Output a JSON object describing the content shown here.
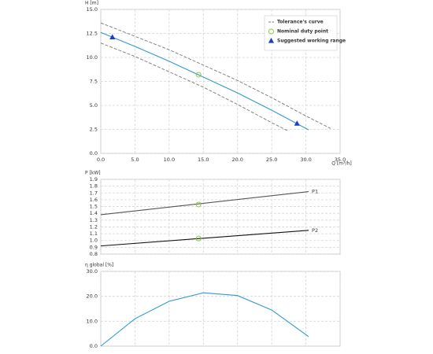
{
  "chart_data": [
    {
      "type": "line",
      "ylabel": "H [m]",
      "xlabel": "Q [m³/h]",
      "xlim": [
        0,
        35
      ],
      "ylim": [
        0,
        15
      ],
      "xticks": [
        {
          "value": 0,
          "label": "0.0"
        },
        {
          "value": 5,
          "label": "5.0"
        },
        {
          "value": 10,
          "label": "10.0"
        },
        {
          "value": 15,
          "label": "15.0"
        },
        {
          "value": 20,
          "label": "20.0"
        },
        {
          "value": 25,
          "label": "25.0"
        },
        {
          "value": 30,
          "label": "30.0"
        },
        {
          "value": 35,
          "label": "35.0"
        }
      ],
      "yticks": [
        {
          "value": 0,
          "label": "0.0"
        },
        2.5,
        {
          "value": 5,
          "label": "5.0"
        },
        7.5,
        {
          "value": 10,
          "label": "10.0"
        },
        12.5,
        {
          "value": 15,
          "label": "15.0"
        }
      ],
      "grid": true,
      "legend": "upper right",
      "series": [
        {
          "name": "Tolerance's curve",
          "color": "#777777",
          "dashed": true,
          "x": [
            0,
            5,
            10,
            15,
            20,
            25,
            30,
            33.6
          ],
          "values": [
            13.6,
            12.2,
            10.8,
            9.2,
            7.6,
            5.8,
            3.9,
            2.6
          ]
        },
        {
          "color": "#777777",
          "dashed": true,
          "x": [
            0,
            5,
            10,
            15,
            20,
            25,
            27.5
          ],
          "values": [
            11.5,
            10.1,
            8.5,
            6.9,
            5.1,
            3.2,
            2.3
          ]
        },
        {
          "color": "#3399cc",
          "x": [
            0,
            5,
            10,
            15,
            20,
            25,
            30.4
          ],
          "values": [
            12.6,
            11.15,
            9.6,
            7.95,
            6.3,
            4.5,
            2.45
          ]
        }
      ],
      "markers": [
        {
          "name": "Nominal duty point",
          "shape": "circle",
          "color": "#8dc63f",
          "x": [
            14.3
          ],
          "values": [
            8.2
          ]
        },
        {
          "name": "Suggested working range",
          "shape": "triangle",
          "color": "#1a3fcf",
          "x": [
            1.7,
            28.7
          ],
          "values": [
            12.1,
            3.1
          ]
        }
      ]
    },
    {
      "type": "line",
      "ylabel": "P [kW]",
      "xlim": [
        0,
        35
      ],
      "ylim": [
        0.8,
        1.9
      ],
      "xticks": [
        0,
        5,
        10,
        15,
        20,
        25,
        30,
        35
      ],
      "show_xtick_labels": false,
      "yticks": [
        0.8,
        0.9,
        {
          "value": 1,
          "label": "1.0"
        },
        1.1,
        1.2,
        1.3,
        1.4,
        1.5,
        1.6,
        1.7,
        1.8,
        1.9
      ],
      "grid": true,
      "line_labels": true,
      "series": [
        {
          "name": "P1",
          "color": "#555555",
          "x": [
            0,
            30.4
          ],
          "values": [
            1.38,
            1.72
          ]
        },
        {
          "name": "P2",
          "color": "#111111",
          "x": [
            0,
            30.4
          ],
          "values": [
            0.92,
            1.15
          ]
        }
      ],
      "markers": [
        {
          "shape": "circle",
          "color": "#8dc63f",
          "x": [
            14.3,
            14.3
          ],
          "values": [
            1.53,
            1.03
          ]
        }
      ]
    },
    {
      "type": "line",
      "ylabel": "η global [%]",
      "xlim": [
        0,
        35
      ],
      "ylim": [
        0,
        30
      ],
      "xticks": [
        0,
        5,
        10,
        15,
        20,
        25,
        30,
        35
      ],
      "show_xtick_labels": false,
      "yticks": [
        {
          "value": 0,
          "label": "0.0"
        },
        {
          "value": 10,
          "label": "10.0"
        },
        {
          "value": 20,
          "label": "20.0"
        },
        {
          "value": 30,
          "label": "30.0"
        }
      ],
      "grid": true,
      "series": [
        {
          "color": "#3399cc",
          "x": [
            0,
            5,
            10,
            15,
            20,
            25,
            30.4
          ],
          "values": [
            0,
            11,
            18,
            21.4,
            20.3,
            14.5,
            3.8
          ]
        }
      ]
    }
  ]
}
